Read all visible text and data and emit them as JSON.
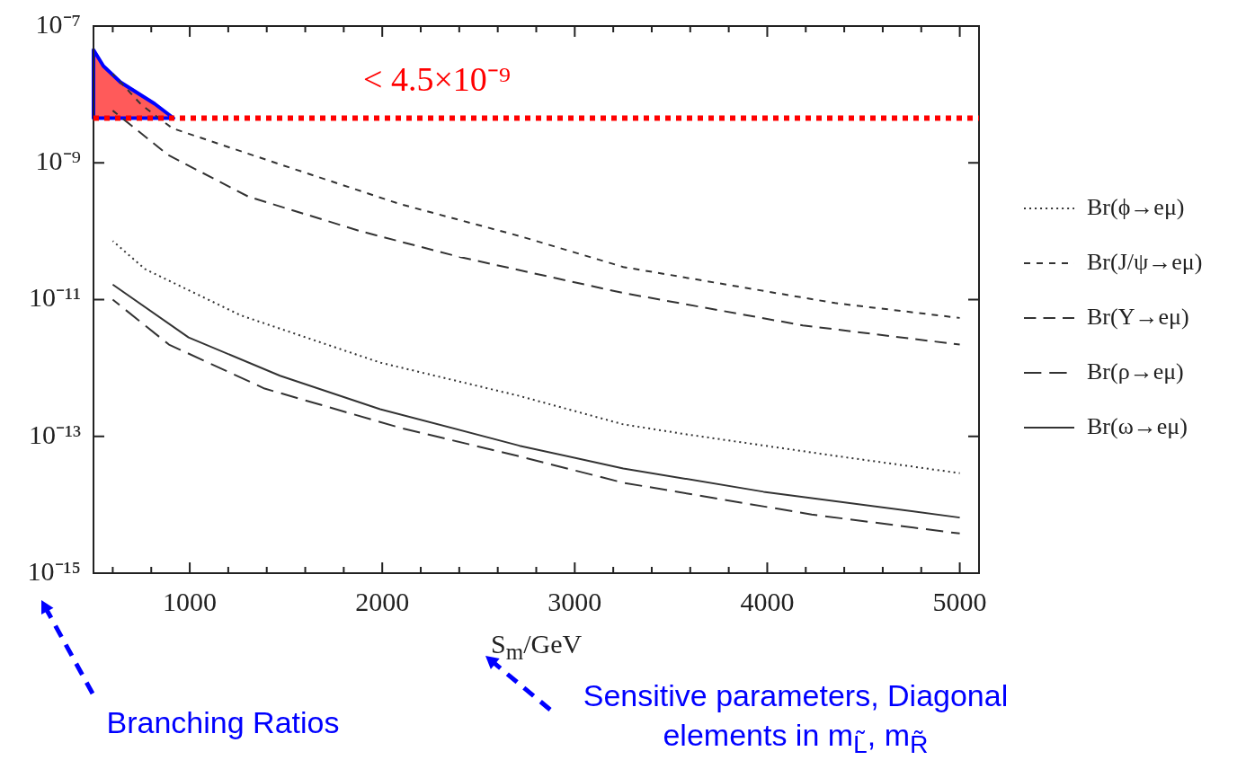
{
  "chart_data": {
    "type": "line",
    "xlabel": "S$_{m}$/GeV",
    "log": "y",
    "grid": false,
    "legend": "right",
    "marker": "none",
    "xlim": [
      500,
      5100
    ],
    "ylim": [
      1e-15,
      1e-07
    ],
    "xticks": [
      {
        "value": 600,
        "label": null
      },
      {
        "value": 800,
        "label": null
      },
      1000,
      {
        "value": 1200,
        "label": null
      },
      {
        "value": 1400,
        "label": null
      },
      {
        "value": 1600,
        "label": null
      },
      {
        "value": 1800,
        "label": null
      },
      2000,
      {
        "value": 2200,
        "label": null
      },
      {
        "value": 2400,
        "label": null
      },
      {
        "value": 2600,
        "label": null
      },
      {
        "value": 2800,
        "label": null
      },
      3000,
      {
        "value": 3200,
        "label": null
      },
      {
        "value": 3400,
        "label": null
      },
      {
        "value": 3600,
        "label": null
      },
      {
        "value": 3800,
        "label": null
      },
      4000,
      {
        "value": 4200,
        "label": null
      },
      {
        "value": 4400,
        "label": null
      },
      {
        "value": 4600,
        "label": null
      },
      {
        "value": 4800,
        "label": null
      },
      5000
    ],
    "yticks": [
      {
        "value": 1e-15,
        "label": "10⁻¹⁵"
      },
      {
        "value": 1e-13,
        "label": "10⁻¹³"
      },
      {
        "value": 1e-11,
        "label": "10⁻¹¹"
      },
      {
        "value": 1e-09,
        "label": "10⁻⁹"
      },
      {
        "value": 1e-07,
        "label": "10⁻⁷"
      }
    ],
    "series": [
      {
        "name": "Br(ϕ→eμ)",
        "color": "#333333",
        "line_style": "dotted",
        "x": [
          600,
          767,
          1264,
          1989,
          2713,
          3252,
          3581,
          4352,
          5000
        ],
        "values": [
          7.2e-11,
          2.8e-11,
          5.9e-12,
          1.2e-12,
          3.9e-13,
          1.5e-13,
          1.07e-13,
          5.2e-14,
          2.9e-14
        ]
      },
      {
        "name": "Br(J/ψ→eμ)",
        "color": "#333333",
        "line_style": "dashed",
        "x": [
          600,
          750,
          910,
          1469,
          2091,
          2713,
          3252,
          4352,
          5000
        ],
        "values": [
          2e-08,
          7e-09,
          3.2e-09,
          9.5e-10,
          2.5e-10,
          8.5e-11,
          3e-11,
          8.9e-12,
          5.4e-12
        ]
      },
      {
        "name": "Br(Υ→eμ)",
        "color": "#333333",
        "line_style": "dashed",
        "x": [
          600,
          888,
          1305,
          1887,
          2402,
          3252,
          4185,
          5000
        ],
        "values": [
          5.8e-09,
          1.3e-09,
          3.2e-10,
          1e-10,
          4.2e-11,
          1.25e-11,
          4.2e-12,
          2.2e-12
        ]
      },
      {
        "name": "Br(ρ→eμ)",
        "color": "#333333",
        "line_style": "dashed",
        "x": [
          600,
          892,
          1389,
          2091,
          2713,
          3252,
          4231,
          5000
        ],
        "values": [
          1e-11,
          2.2e-12,
          5e-13,
          1.34e-13,
          5.1e-14,
          2.1e-14,
          7.2e-15,
          3.8e-15
        ]
      },
      {
        "name": "Br(ω→eμ)",
        "color": "#333333",
        "line_style": "solid",
        "x": [
          600,
          994,
          1469,
          1989,
          2713,
          3252,
          3981,
          5000
        ],
        "values": [
          1.66e-11,
          2.8e-12,
          7.7e-13,
          2.5e-13,
          7.3e-14,
          3.4e-14,
          1.55e-14,
          6.5e-15
        ]
      }
    ],
    "ref_lines": [
      {
        "axis": "y",
        "value": 4.5e-09,
        "label": "< 4.5×10⁻⁹",
        "color": "#ff0000",
        "line_style": "dotted"
      }
    ],
    "annotations": [
      "Branching Ratios",
      "Sensitive parameters, Diagonal elements in m$_{L̃}$, m$_{R̃}$"
    ]
  }
}
